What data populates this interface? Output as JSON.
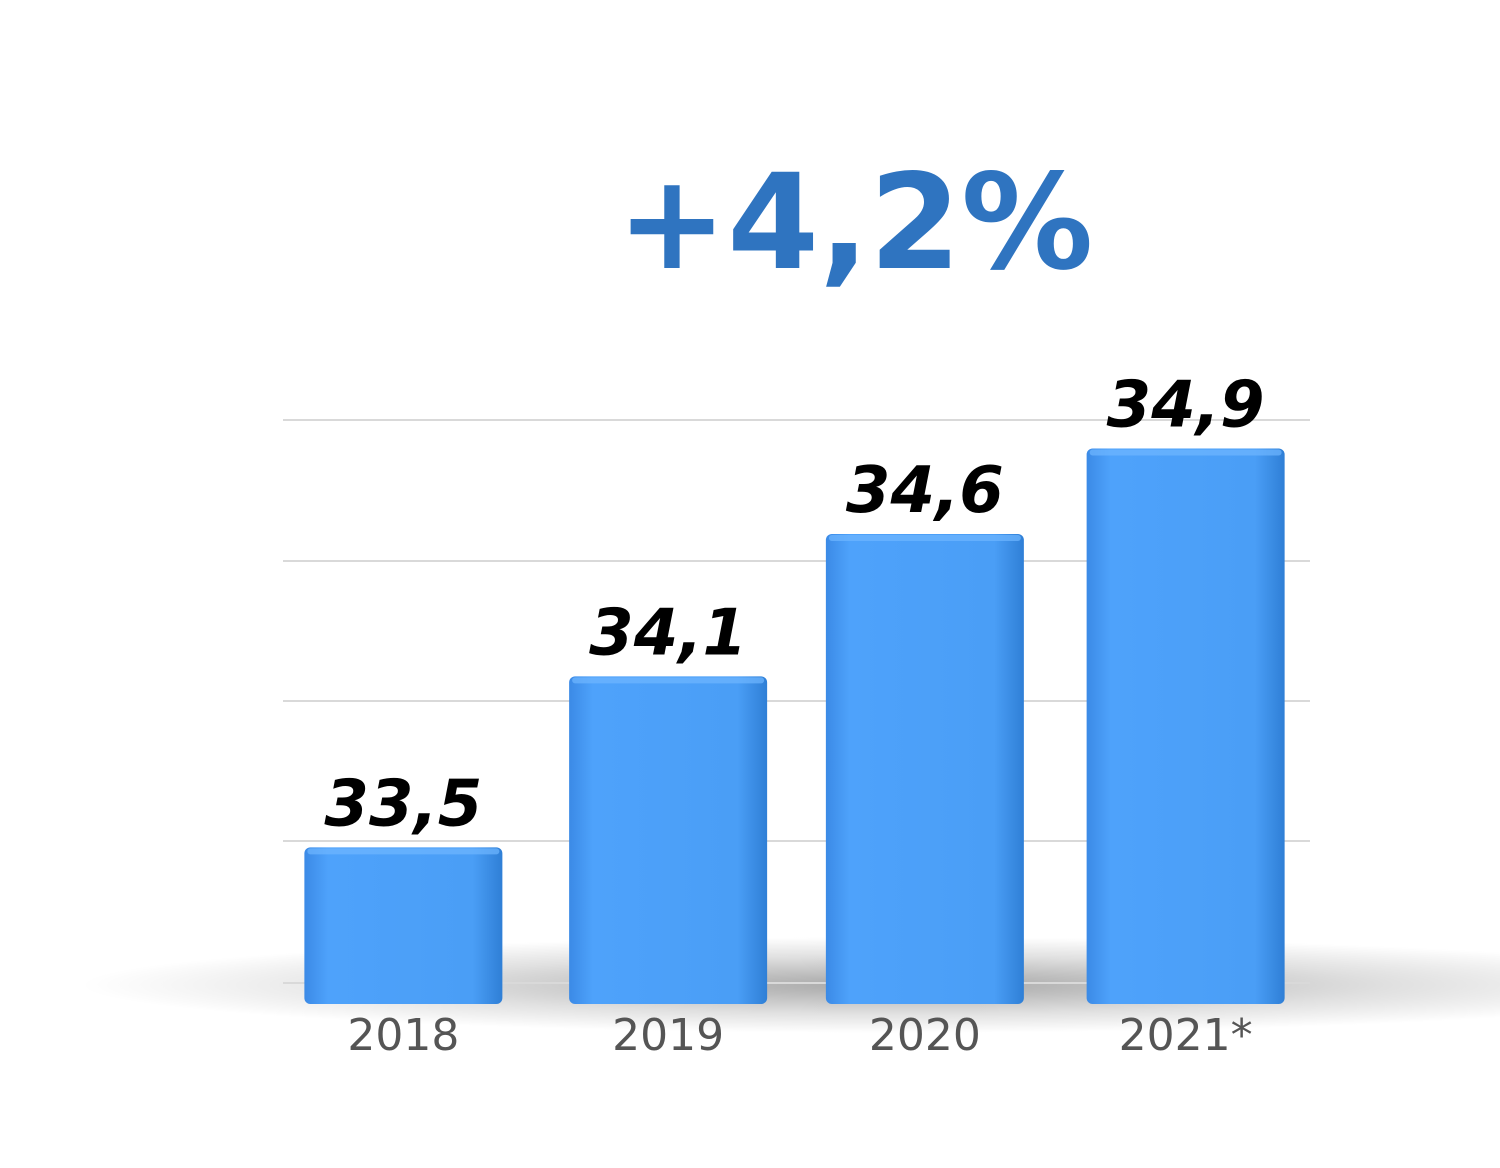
{
  "chart_data": {
    "type": "bar",
    "headline": "+4,2%",
    "categories": [
      "2018",
      "2019",
      "2020",
      "2021*"
    ],
    "values": [
      33.5,
      34.1,
      34.6,
      34.9
    ],
    "value_labels": [
      "33,5",
      "34,1",
      "34,6",
      "34,9"
    ],
    "title": "",
    "xlabel": "",
    "ylabel": "",
    "ylim": [
      32.95,
      35.0
    ],
    "grid": true,
    "legend": "none",
    "colors": {
      "bar": "#4a9ef6",
      "bar_dark": "#2f7fd6",
      "headline": "#2f74c0",
      "value_label": "#000000",
      "tick_label": "#555555",
      "grid": "#d9d9d9"
    }
  }
}
